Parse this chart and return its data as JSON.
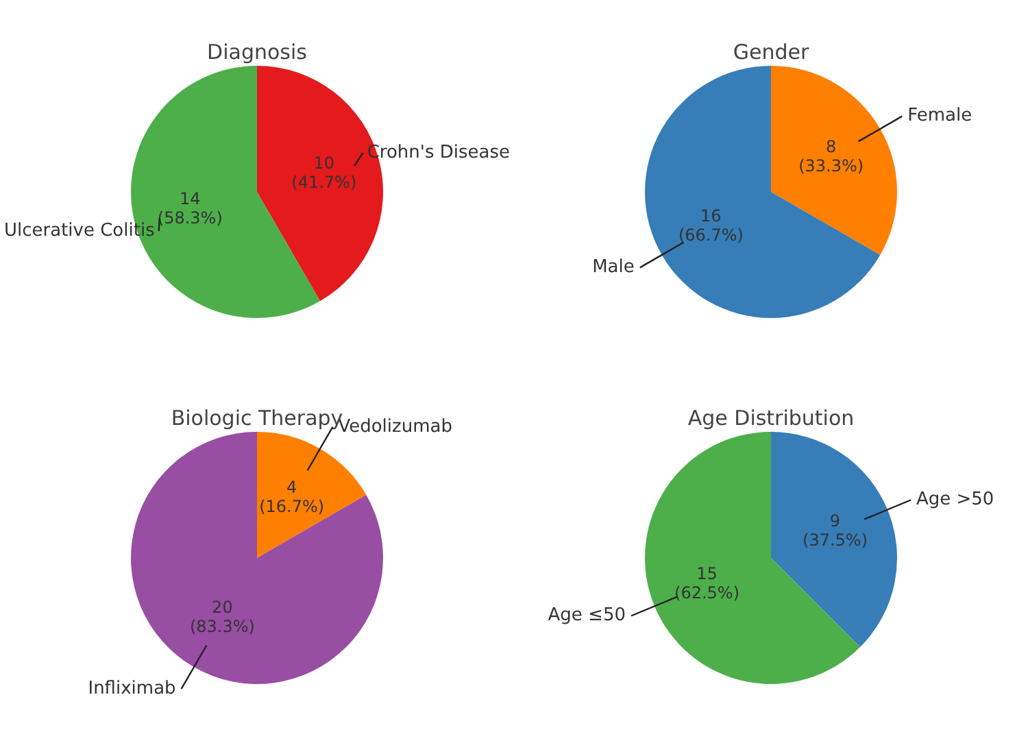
{
  "chart_data": [
    {
      "type": "pie",
      "title": "Diagnosis",
      "categories": [
        "Crohn's Disease",
        "Ulcerative Colitis"
      ],
      "values": [
        10,
        14
      ],
      "colors": [
        "#e41a1c",
        "#4daf4a"
      ],
      "value_labels": [
        "10\n(41.7%)",
        "14\n(58.3%)"
      ],
      "legend": false
    },
    {
      "type": "pie",
      "title": "Gender",
      "categories": [
        "Female",
        "Male"
      ],
      "values": [
        8,
        16
      ],
      "colors": [
        "#ff7f00",
        "#377eb8"
      ],
      "value_labels": [
        "8\n(33.3%)",
        "16\n(66.7%)"
      ],
      "legend": false
    },
    {
      "type": "pie",
      "title": "Biologic Therapy",
      "categories": [
        "Vedolizumab",
        "Infliximab"
      ],
      "values": [
        4,
        20
      ],
      "colors": [
        "#ff7f00",
        "#984ea3"
      ],
      "value_labels": [
        "4\n(16.7%)",
        "20\n(83.3%)"
      ],
      "legend": false
    },
    {
      "type": "pie",
      "title": "Age Distribution",
      "categories": [
        "Age >50",
        "Age ≤50"
      ],
      "values": [
        9,
        15
      ],
      "colors": [
        "#377eb8",
        "#4daf4a"
      ],
      "value_labels": [
        "9\n(37.5%)",
        "15\n(62.5%)"
      ],
      "legend": false
    }
  ]
}
